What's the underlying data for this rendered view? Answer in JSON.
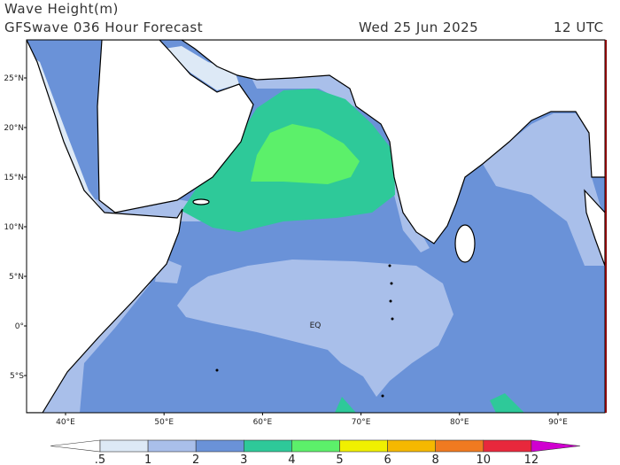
{
  "header": {
    "title": "Wave Height(m)",
    "model": "GFSwave 036 Hour Forecast",
    "date": "Wed 25 Jun 2025",
    "time": "12 UTC"
  },
  "map": {
    "lat_labels": [
      "25°N",
      "20°N",
      "15°N",
      "10°N",
      "5°N",
      "0°",
      "5°S"
    ],
    "lon_labels": [
      "40°E",
      "50°E",
      "60°E",
      "70°E",
      "80°E",
      "90°E"
    ],
    "eq_label": "EQ"
  },
  "colorbar": {
    "labels": [
      ".5",
      "1",
      "2",
      "3",
      "4",
      "5",
      "6",
      "8",
      "10",
      "12"
    ],
    "colors": [
      "#ffffff",
      "#dde9f6",
      "#a9bfea",
      "#6a92d8",
      "#2ec999",
      "#5cf06a",
      "#f0f000",
      "#f5b800",
      "#f07a20",
      "#e8283c",
      "#b80000",
      "#d000d0"
    ]
  }
}
